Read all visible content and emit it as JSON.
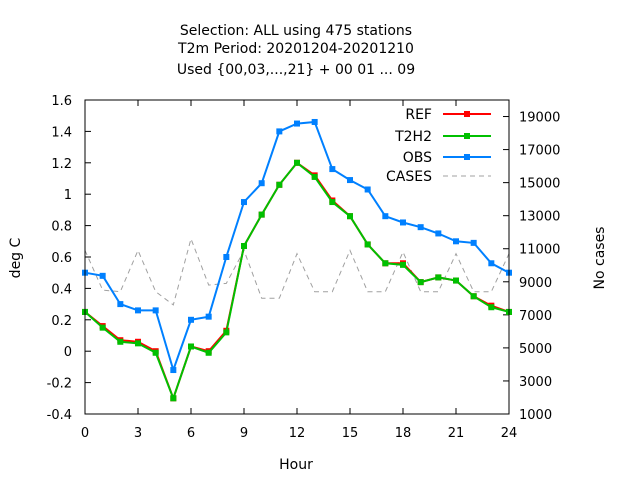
{
  "chart_data": {
    "type": "line",
    "title_lines": [
      "Selection: ALL using   475 stations",
      "T2m   Period: 20201204-20201210",
      "Used {00,03,...,21} + 00 01 ... 09"
    ],
    "xlabel": "Hour",
    "ylabel": "deg C",
    "y2label": "No cases",
    "xlim": [
      0,
      24
    ],
    "ylim": [
      -0.4,
      1.6
    ],
    "y2lim": [
      1000,
      20000
    ],
    "xticks": [
      0,
      3,
      6,
      9,
      12,
      15,
      18,
      21,
      24
    ],
    "yticks": [
      "-0.4",
      "-0.2",
      "0",
      "0.2",
      "0.4",
      "0.6",
      "0.8",
      "1",
      "1.2",
      "1.4",
      "1.6"
    ],
    "y2ticks": [
      "1000",
      "3000",
      "5000",
      "7000",
      "9000",
      "11000",
      "13000",
      "15000",
      "17000",
      "19000"
    ],
    "legend_position": "top-right",
    "grid": false,
    "x": [
      0,
      1,
      2,
      3,
      4,
      5,
      6,
      7,
      8,
      9,
      10,
      11,
      12,
      13,
      14,
      15,
      16,
      17,
      18,
      19,
      20,
      21,
      22,
      23,
      24
    ],
    "series": [
      {
        "name": "REF",
        "axis": "left",
        "color": "#ff0000",
        "style": "line+points",
        "values": [
          0.25,
          0.16,
          0.07,
          0.06,
          0.0,
          -0.3,
          0.03,
          0.0,
          0.13,
          0.67,
          0.87,
          1.06,
          1.2,
          1.12,
          0.96,
          0.86,
          0.68,
          0.56,
          0.56,
          0.44,
          0.47,
          0.45,
          0.35,
          0.29,
          0.25
        ]
      },
      {
        "name": "T2H2",
        "axis": "left",
        "color": "#00c000",
        "style": "line+points",
        "values": [
          0.25,
          0.15,
          0.06,
          0.05,
          -0.01,
          -0.3,
          0.03,
          -0.01,
          0.12,
          0.67,
          0.87,
          1.06,
          1.2,
          1.11,
          0.95,
          0.86,
          0.68,
          0.56,
          0.55,
          0.44,
          0.47,
          0.45,
          0.35,
          0.28,
          0.25
        ]
      },
      {
        "name": "OBS",
        "axis": "left",
        "color": "#0080ff",
        "style": "line+points",
        "values": [
          0.5,
          0.48,
          0.3,
          0.26,
          0.26,
          -0.12,
          0.2,
          0.22,
          0.6,
          0.95,
          1.07,
          1.4,
          1.45,
          1.46,
          1.16,
          1.09,
          1.03,
          0.86,
          0.82,
          0.79,
          0.75,
          0.7,
          0.69,
          0.56,
          0.5
        ]
      },
      {
        "name": "CASES",
        "axis": "right",
        "color": "#a0a0a0",
        "style": "dashed",
        "values": [
          10900,
          8500,
          8400,
          10900,
          8400,
          7600,
          11600,
          8800,
          8900,
          10900,
          8000,
          8000,
          10700,
          8400,
          8400,
          10900,
          8400,
          8400,
          10800,
          8400,
          8400,
          10700,
          8400,
          8400,
          10700
        ]
      }
    ]
  }
}
